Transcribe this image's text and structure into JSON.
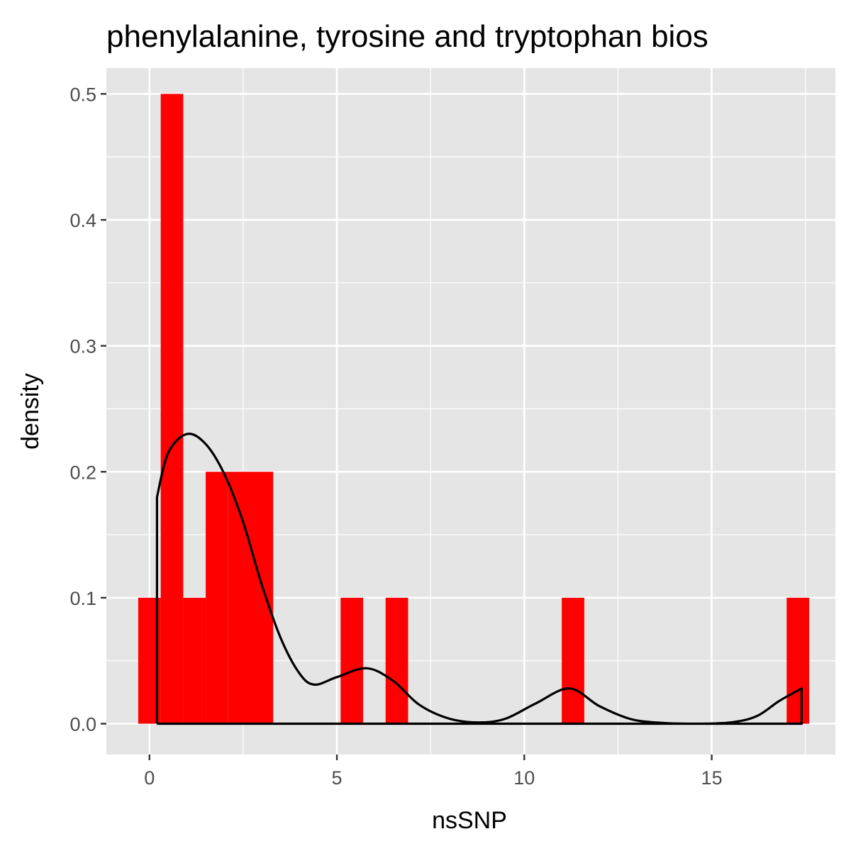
{
  "chart_data": {
    "type": "histogram",
    "title": "phenylalanine, tyrosine and tryptophan bios",
    "xlabel": "nsSNP",
    "ylabel": "density",
    "xlim": [
      -1.15,
      18.3
    ],
    "ylim": [
      -0.0245,
      0.5205
    ],
    "x_ticks": [
      0,
      5,
      10,
      15
    ],
    "x_tick_labels": [
      "0",
      "5",
      "10",
      "15"
    ],
    "y_ticks": [
      0.0,
      0.1,
      0.2,
      0.3,
      0.4,
      0.5
    ],
    "y_tick_labels": [
      "0.0",
      "0.1",
      "0.2",
      "0.3",
      "0.4",
      "0.5"
    ],
    "grid": true,
    "bar_color": "#ff0000",
    "panel_color": "#e5e5e5",
    "line_color": "#000000",
    "bins": [
      {
        "start": -0.3,
        "end": 0.3,
        "density": 0.1
      },
      {
        "start": 0.3,
        "end": 0.9,
        "density": 0.5
      },
      {
        "start": 0.9,
        "end": 1.5,
        "density": 0.1
      },
      {
        "start": 1.5,
        "end": 2.1,
        "density": 0.2
      },
      {
        "start": 2.1,
        "end": 2.7,
        "density": 0.2
      },
      {
        "start": 2.7,
        "end": 3.3,
        "density": 0.2
      },
      {
        "start": 5.1,
        "end": 5.7,
        "density": 0.1
      },
      {
        "start": 6.3,
        "end": 6.9,
        "density": 0.1
      },
      {
        "start": 11.0,
        "end": 11.6,
        "density": 0.1
      },
      {
        "start": 17.0,
        "end": 17.6,
        "density": 0.1
      }
    ],
    "density_curve": {
      "x": [
        0.2,
        0.2,
        0.5,
        1.0,
        1.5,
        2.0,
        2.5,
        3.0,
        3.5,
        4.0,
        4.4,
        5.0,
        5.8,
        6.5,
        7.2,
        8.0,
        8.8,
        9.5,
        10.3,
        11.2,
        12.0,
        12.8,
        13.5,
        14.5,
        15.5,
        16.2,
        16.8,
        17.4,
        17.4,
        0.2
      ],
      "y": [
        0.0,
        0.18,
        0.215,
        0.23,
        0.222,
        0.198,
        0.16,
        0.11,
        0.068,
        0.04,
        0.031,
        0.037,
        0.044,
        0.034,
        0.015,
        0.004,
        0.001,
        0.004,
        0.016,
        0.028,
        0.014,
        0.004,
        0.001,
        0.0,
        0.001,
        0.006,
        0.018,
        0.028,
        0.0,
        0.0
      ]
    }
  }
}
